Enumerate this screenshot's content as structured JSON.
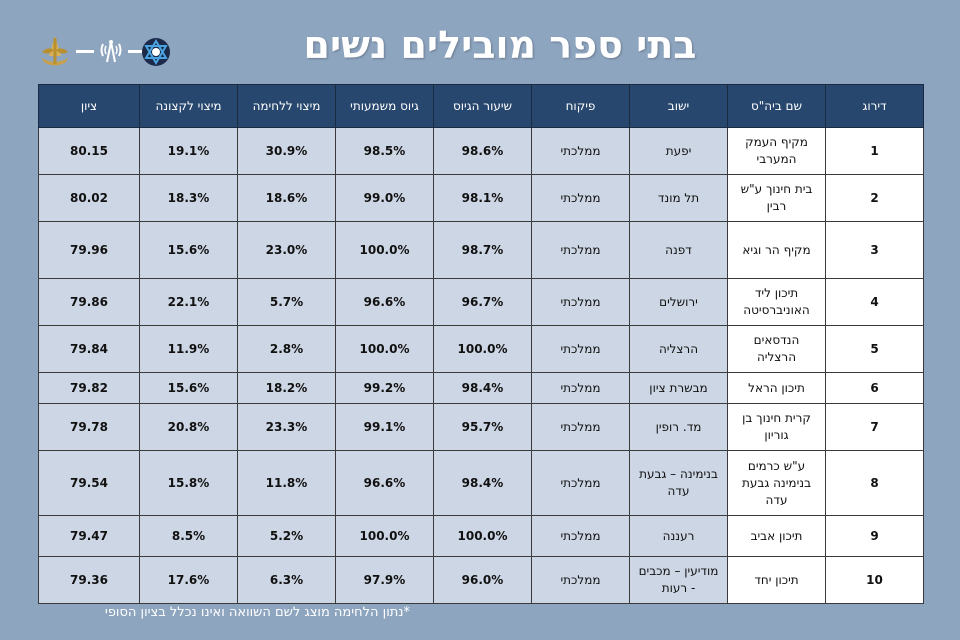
{
  "title": "בתי ספר מובילים נשים",
  "logos": [
    "idf-emblem-icon",
    "signal-antenna-icon",
    "unit-emblem-icon"
  ],
  "columns": [
    "דירוג",
    "שם ביה\"ס",
    "ישוב",
    "פיקוח",
    "שיעור הגיוס",
    "גיוס משמעותי",
    "מיצוי ללחימה",
    "מיצוי לקצונה",
    "ציון"
  ],
  "rows": [
    {
      "rank": "1",
      "school": "מקיף העמק המערבי",
      "city": "יפעת",
      "supervision": "ממלכתי",
      "recruit_rate": "98.6%",
      "meaningful": "98.5%",
      "combat": "30.9%",
      "officer": "19.1%",
      "score": "80.15"
    },
    {
      "rank": "2",
      "school": "בית חינוך ע\"ש רבין",
      "city": "תל מונד",
      "supervision": "ממלכתי",
      "recruit_rate": "98.1%",
      "meaningful": "99.0%",
      "combat": "18.6%",
      "officer": "18.3%",
      "score": "80.02"
    },
    {
      "rank": "3",
      "school": "מקיף הר וגיא",
      "city": "דפנה",
      "supervision": "ממלכתי",
      "recruit_rate": "98.7%",
      "meaningful": "100.0%",
      "combat": "23.0%",
      "officer": "15.6%",
      "score": "79.96"
    },
    {
      "rank": "4",
      "school": "תיכון ליד האוניברסיטה",
      "city": "ירושלים",
      "supervision": "ממלכתי",
      "recruit_rate": "96.7%",
      "meaningful": "96.6%",
      "combat": "5.7%",
      "officer": "22.1%",
      "score": "79.86"
    },
    {
      "rank": "5",
      "school": "הנדסאים הרצליה",
      "city": "הרצליה",
      "supervision": "ממלכתי",
      "recruit_rate": "100.0%",
      "meaningful": "100.0%",
      "combat": "2.8%",
      "officer": "11.9%",
      "score": "79.84"
    },
    {
      "rank": "6",
      "school": "תיכון הראל",
      "city": "מבשרת ציון",
      "supervision": "ממלכתי",
      "recruit_rate": "98.4%",
      "meaningful": "99.2%",
      "combat": "18.2%",
      "officer": "15.6%",
      "score": "79.82"
    },
    {
      "rank": "7",
      "school": "קרית חינוך בן גוריון",
      "city": "מד. רופין",
      "supervision": "ממלכתי",
      "recruit_rate": "95.7%",
      "meaningful": "99.1%",
      "combat": "23.3%",
      "officer": "20.8%",
      "score": "79.78"
    },
    {
      "rank": "8",
      "school": "ע\"ש כרמים בנימינה גבעת עדה",
      "city": "בנימינה – גבעת עדה",
      "supervision": "ממלכתי",
      "recruit_rate": "98.4%",
      "meaningful": "96.6%",
      "combat": "11.8%",
      "officer": "15.8%",
      "score": "79.54"
    },
    {
      "rank": "9",
      "school": "תיכון אביב",
      "city": "רעננה",
      "supervision": "ממלכתי",
      "recruit_rate": "100.0%",
      "meaningful": "100.0%",
      "combat": "5.2%",
      "officer": "8.5%",
      "score": "79.47"
    },
    {
      "rank": "10",
      "school": "תיכון יחד",
      "city": "מודיעין – מכבים - רעות",
      "supervision": "ממלכתי",
      "recruit_rate": "96.0%",
      "meaningful": "97.9%",
      "combat": "6.3%",
      "officer": "17.6%",
      "score": "79.36"
    }
  ],
  "footnote": "*נתון הלחימה מוצג לשם השוואה ואינו נכלל בציון הסופי",
  "colors": {
    "background": "#8ea5c0",
    "header": "#27476e",
    "cell": "#cdd6e4"
  }
}
